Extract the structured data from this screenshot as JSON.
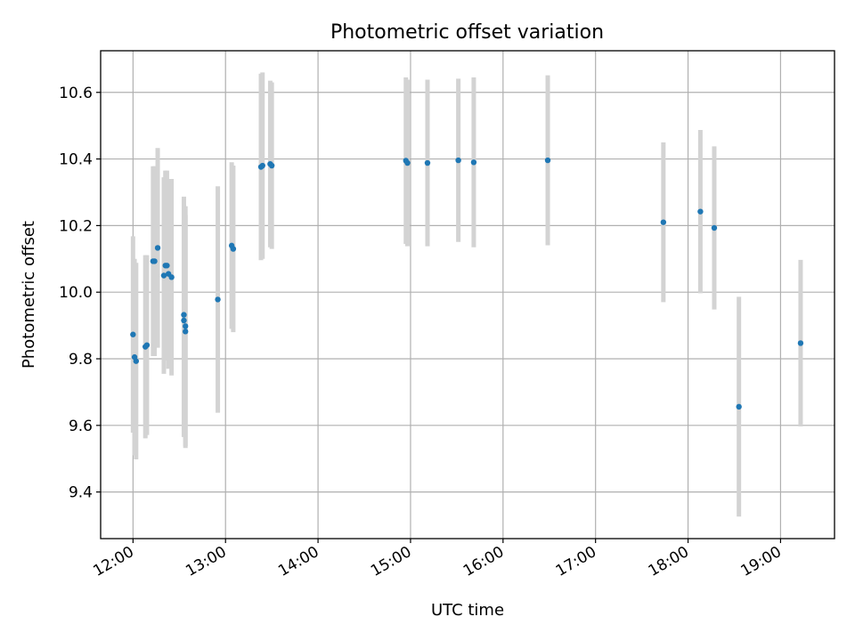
{
  "chart_data": {
    "type": "scatter",
    "title": "Photometric offset variation",
    "xlabel": "UTC time",
    "ylabel": "Photometric offset",
    "x_unit": "UTC time (HH:MM)",
    "xlim": [
      "11:39",
      "19:35"
    ],
    "ylim": [
      9.26,
      10.725
    ],
    "grid": true,
    "legend": "none",
    "x_ticks": [
      "12:00",
      "13:00",
      "14:00",
      "15:00",
      "16:00",
      "17:00",
      "18:00",
      "19:00"
    ],
    "y_ticks": [
      9.4,
      9.6,
      9.8,
      10.0,
      10.2,
      10.4,
      10.6
    ],
    "y_tick_labels": [
      "9.4",
      "9.6",
      "9.8",
      "10.0",
      "10.2",
      "10.4",
      "10.6"
    ],
    "colors": {
      "point": "#1f77b4",
      "errorbar": "#d3d3d3",
      "grid": "#b0b0b0"
    },
    "points": [
      {
        "x": "12:00",
        "y": 9.873,
        "err": 0.295
      },
      {
        "x": "12:01",
        "y": 9.805,
        "err": 0.295
      },
      {
        "x": "12:02",
        "y": 9.793,
        "err": 0.295
      },
      {
        "x": "12:08",
        "y": 9.836,
        "err": 0.275
      },
      {
        "x": "12:09",
        "y": 9.841,
        "err": 0.27
      },
      {
        "x": "12:13",
        "y": 10.093,
        "err": 0.285
      },
      {
        "x": "12:14",
        "y": 10.093,
        "err": 0.285
      },
      {
        "x": "12:16",
        "y": 10.133,
        "err": 0.3
      },
      {
        "x": "12:20",
        "y": 10.05,
        "err": 0.295
      },
      {
        "x": "12:21",
        "y": 10.08,
        "err": 0.285
      },
      {
        "x": "12:22",
        "y": 10.08,
        "err": 0.285
      },
      {
        "x": "12:23",
        "y": 10.055,
        "err": 0.285
      },
      {
        "x": "12:25",
        "y": 10.045,
        "err": 0.295
      },
      {
        "x": "12:33",
        "y": 9.932,
        "err": 0.355
      },
      {
        "x": "12:33",
        "y": 9.915,
        "err": 0.35
      },
      {
        "x": "12:34",
        "y": 9.898,
        "err": 0.36
      },
      {
        "x": "12:34",
        "y": 9.882,
        "err": 0.35
      },
      {
        "x": "12:55",
        "y": 9.978,
        "err": 0.34
      },
      {
        "x": "13:04",
        "y": 10.14,
        "err": 0.25
      },
      {
        "x": "13:05",
        "y": 10.13,
        "err": 0.25
      },
      {
        "x": "13:23",
        "y": 10.376,
        "err": 0.28
      },
      {
        "x": "13:24",
        "y": 10.38,
        "err": 0.28
      },
      {
        "x": "13:29",
        "y": 10.385,
        "err": 0.25
      },
      {
        "x": "13:30",
        "y": 10.38,
        "err": 0.25
      },
      {
        "x": "14:57",
        "y": 10.395,
        "err": 0.25
      },
      {
        "x": "14:58",
        "y": 10.388,
        "err": 0.25
      },
      {
        "x": "15:11",
        "y": 10.388,
        "err": 0.25
      },
      {
        "x": "15:31",
        "y": 10.396,
        "err": 0.245
      },
      {
        "x": "15:41",
        "y": 10.39,
        "err": 0.255
      },
      {
        "x": "16:29",
        "y": 10.396,
        "err": 0.255
      },
      {
        "x": "17:44",
        "y": 10.21,
        "err": 0.24
      },
      {
        "x": "18:08",
        "y": 10.242,
        "err": 0.245
      },
      {
        "x": "18:17",
        "y": 10.193,
        "err": 0.245
      },
      {
        "x": "18:33",
        "y": 9.656,
        "err": 0.33
      },
      {
        "x": "19:13",
        "y": 9.847,
        "err": 0.25
      }
    ]
  }
}
